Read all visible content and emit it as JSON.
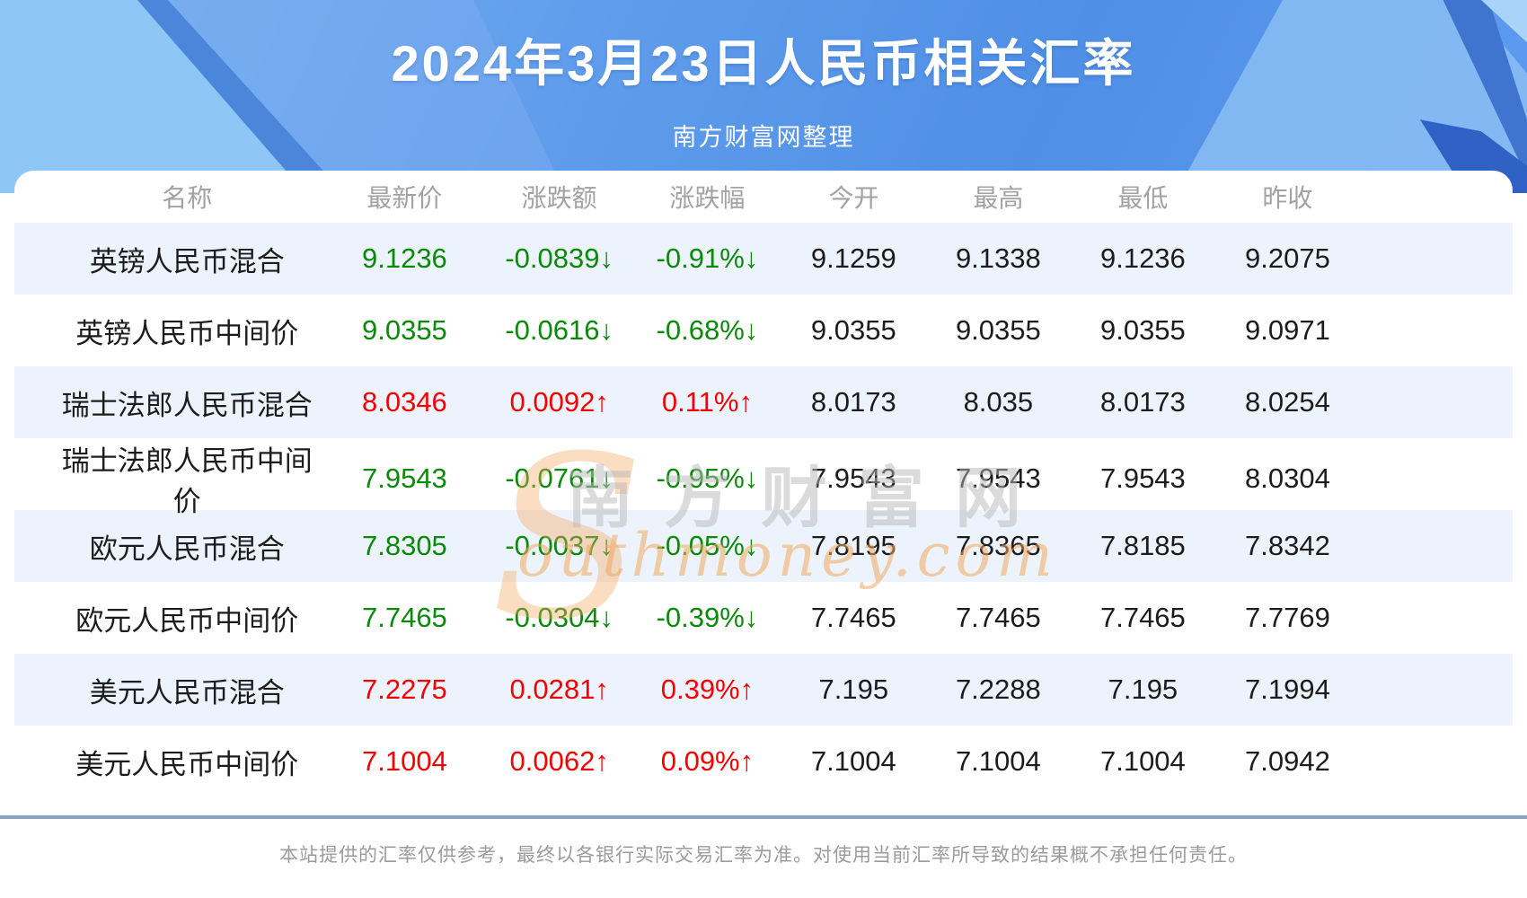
{
  "header": {
    "title": "2024年3月23日人民币相关汇率",
    "subtitle": "南方财富网整理"
  },
  "chart_data": {
    "type": "table",
    "title": "2024年3月23日人民币相关汇率",
    "columns": [
      "名称",
      "最新价",
      "涨跌额",
      "涨跌幅",
      "今开",
      "最高",
      "最低",
      "昨收"
    ],
    "rows": [
      {
        "name": "英镑人民币混合",
        "last": "9.1236",
        "change": "-0.0839↓",
        "pct": "-0.91%↓",
        "trend": "down",
        "open": "9.1259",
        "high": "9.1338",
        "low": "9.1236",
        "prev": "9.2075"
      },
      {
        "name": "英镑人民币中间价",
        "last": "9.0355",
        "change": "-0.0616↓",
        "pct": "-0.68%↓",
        "trend": "down",
        "open": "9.0355",
        "high": "9.0355",
        "low": "9.0355",
        "prev": "9.0971"
      },
      {
        "name": "瑞士法郎人民币混合",
        "last": "8.0346",
        "change": "0.0092↑",
        "pct": "0.11%↑",
        "trend": "up",
        "open": "8.0173",
        "high": "8.035",
        "low": "8.0173",
        "prev": "8.0254"
      },
      {
        "name": "瑞士法郎人民币中间价",
        "last": "7.9543",
        "change": "-0.0761↓",
        "pct": "-0.95%↓",
        "trend": "down",
        "open": "7.9543",
        "high": "7.9543",
        "low": "7.9543",
        "prev": "8.0304"
      },
      {
        "name": "欧元人民币混合",
        "last": "7.8305",
        "change": "-0.0037↓",
        "pct": "-0.05%↓",
        "trend": "down",
        "open": "7.8195",
        "high": "7.8365",
        "low": "7.8185",
        "prev": "7.8342"
      },
      {
        "name": "欧元人民币中间价",
        "last": "7.7465",
        "change": "-0.0304↓",
        "pct": "-0.39%↓",
        "trend": "down",
        "open": "7.7465",
        "high": "7.7465",
        "low": "7.7465",
        "prev": "7.7769"
      },
      {
        "name": "美元人民币混合",
        "last": "7.2275",
        "change": "0.0281↑",
        "pct": "0.39%↑",
        "trend": "up",
        "open": "7.195",
        "high": "7.2288",
        "low": "7.195",
        "prev": "7.1994"
      },
      {
        "name": "美元人民币中间价",
        "last": "7.1004",
        "change": "0.0062↑",
        "pct": "0.09%↑",
        "trend": "up",
        "open": "7.1004",
        "high": "7.1004",
        "low": "7.1004",
        "prev": "7.0942"
      }
    ]
  },
  "watermark": {
    "s": "S",
    "cn": "南方财富网",
    "en": "outhmoney.com"
  },
  "footer": {
    "disclaimer": "本站提供的汇率仅供参考，最终以各银行实际交易汇率为准。对使用当前汇率所导致的结果概不承担任何责任。"
  },
  "colors": {
    "up_red": "#f40000",
    "down_green": "#0a8a0a",
    "row_stripe": "#edf3fc",
    "header_text": "#a2a2a2",
    "divider": "#87a3c0",
    "hero_blue_dark": "#4f8fe5",
    "hero_blue_light": "#8ec6f6",
    "watermark_orange": "#f0a95f"
  }
}
